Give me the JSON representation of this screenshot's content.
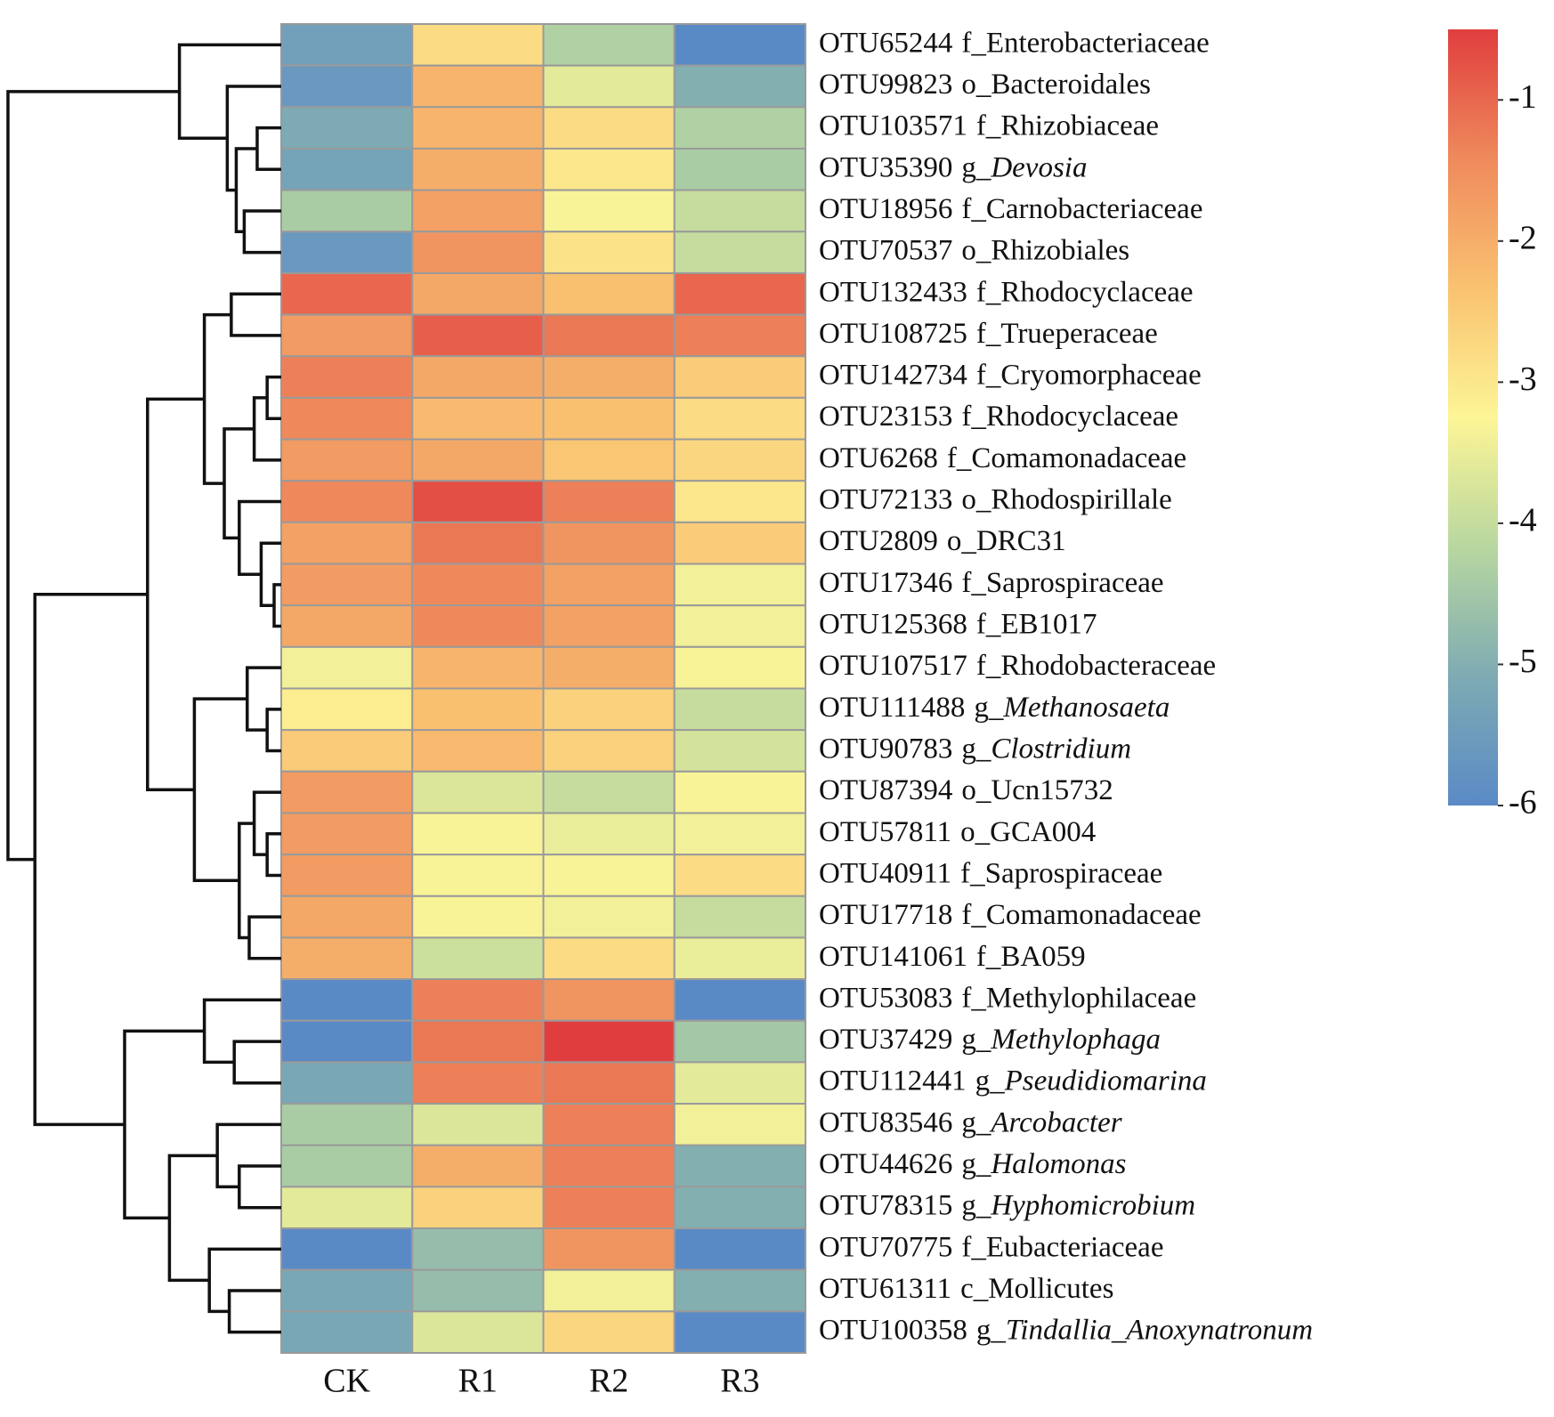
{
  "chart_data": {
    "type": "heatmap",
    "columns": [
      "CK",
      "R1",
      "R2",
      "R3"
    ],
    "rows": [
      {
        "otu": "OTU65244",
        "taxon": "f_Enterobacteriaceae"
      },
      {
        "otu": "OTU99823",
        "taxon": "o_Bacteroidales"
      },
      {
        "otu": "OTU103571",
        "taxon": "f_Rhizobiaceae"
      },
      {
        "otu": "OTU35390",
        "rank": "g_",
        "taxon": "Devosia",
        "italic": true
      },
      {
        "otu": "OTU18956",
        "taxon": "f_Carnobacteriaceae"
      },
      {
        "otu": "OTU70537",
        "taxon": "o_Rhizobiales"
      },
      {
        "otu": "OTU132433",
        "taxon": "f_Rhodocyclaceae"
      },
      {
        "otu": "OTU108725",
        "taxon": "f_Trueperaceae"
      },
      {
        "otu": "OTU142734",
        "taxon": "f_Cryomorphaceae"
      },
      {
        "otu": "OTU23153",
        "taxon": "f_Rhodocyclaceae"
      },
      {
        "otu": "OTU6268",
        "taxon": "f_Comamonadaceae"
      },
      {
        "otu": "OTU72133",
        "taxon": "o_Rhodospirillale"
      },
      {
        "otu": "OTU2809",
        "taxon": "o_DRC31"
      },
      {
        "otu": "OTU17346",
        "taxon": "f_Saprospiraceae"
      },
      {
        "otu": "OTU125368",
        "taxon": "f_EB1017"
      },
      {
        "otu": "OTU107517",
        "taxon": "f_Rhodobacteraceae"
      },
      {
        "otu": "OTU111488",
        "rank": "g_",
        "taxon": "Methanosaeta",
        "italic": true
      },
      {
        "otu": "OTU90783",
        "rank": "g_",
        "taxon": "Clostridium",
        "italic": true
      },
      {
        "otu": "OTU87394",
        "taxon": "o_Ucn15732"
      },
      {
        "otu": "OTU57811",
        "taxon": "o_GCA004"
      },
      {
        "otu": "OTU40911",
        "taxon": "f_Saprospiraceae"
      },
      {
        "otu": "OTU17718",
        "taxon": "f_Comamonadaceae"
      },
      {
        "otu": "OTU141061",
        "taxon": "f_BA059"
      },
      {
        "otu": "OTU53083",
        "taxon": "f_Methylophilaceae"
      },
      {
        "otu": "OTU37429",
        "rank": "g_",
        "taxon": "Methylophaga",
        "italic": true
      },
      {
        "otu": "OTU112441",
        "rank": "g_",
        "taxon": "Pseudidiomarina",
        "italic": true
      },
      {
        "otu": "OTU83546",
        "rank": "g_",
        "taxon": "Arcobacter",
        "italic": true
      },
      {
        "otu": "OTU44626",
        "rank": "g_",
        "taxon": "Halomonas",
        "italic": true
      },
      {
        "otu": "OTU78315",
        "rank": "g_",
        "taxon": "Hyphomicrobium",
        "italic": true
      },
      {
        "otu": "OTU70775",
        "taxon": "f_Eubacteriaceae"
      },
      {
        "otu": "OTU61311",
        "taxon": "c_Mollicutes"
      },
      {
        "otu": "OTU100358",
        "rank": "g_",
        "taxon": "Tindallia_Anoxynatronum",
        "italic": true
      }
    ],
    "values": [
      [
        -5.4,
        -2.8,
        -4.3,
        -6.0
      ],
      [
        -5.6,
        -2.1,
        -3.6,
        -5.0
      ],
      [
        -5.1,
        -2.1,
        -2.8,
        -4.3
      ],
      [
        -5.3,
        -2.0,
        -3.0,
        -4.4
      ],
      [
        -4.4,
        -1.8,
        -3.3,
        -4.0
      ],
      [
        -5.6,
        -1.6,
        -2.9,
        -4.0
      ],
      [
        -1.0,
        -1.9,
        -2.3,
        -1.0
      ],
      [
        -1.7,
        -0.9,
        -1.2,
        -1.3
      ],
      [
        -1.3,
        -1.9,
        -2.0,
        -2.5
      ],
      [
        -1.4,
        -2.2,
        -2.3,
        -2.8
      ],
      [
        -1.7,
        -1.9,
        -2.4,
        -2.7
      ],
      [
        -1.4,
        -0.7,
        -1.3,
        -3.0
      ],
      [
        -1.8,
        -1.2,
        -1.6,
        -2.5
      ],
      [
        -1.7,
        -1.4,
        -1.8,
        -3.4
      ],
      [
        -1.9,
        -1.4,
        -1.8,
        -3.4
      ],
      [
        -3.4,
        -2.1,
        -2.0,
        -3.3
      ],
      [
        -3.1,
        -2.3,
        -2.6,
        -4.0
      ],
      [
        -2.5,
        -2.2,
        -2.6,
        -3.8
      ],
      [
        -1.7,
        -3.7,
        -4.0,
        -3.3
      ],
      [
        -1.7,
        -3.3,
        -3.5,
        -3.4
      ],
      [
        -1.7,
        -3.3,
        -3.3,
        -2.8
      ],
      [
        -1.9,
        -3.3,
        -3.4,
        -4.0
      ],
      [
        -2.0,
        -3.9,
        -2.8,
        -3.5
      ],
      [
        -6.0,
        -1.3,
        -1.6,
        -6.0
      ],
      [
        -6.0,
        -1.2,
        -0.5,
        -4.5
      ],
      [
        -5.2,
        -1.3,
        -1.2,
        -3.6
      ],
      [
        -4.4,
        -3.7,
        -1.3,
        -3.4
      ],
      [
        -4.4,
        -2.0,
        -1.3,
        -5.0
      ],
      [
        -3.6,
        -2.6,
        -1.3,
        -5.0
      ],
      [
        -6.0,
        -4.7,
        -1.6,
        -6.0
      ],
      [
        -5.2,
        -4.7,
        -3.4,
        -5.0
      ],
      [
        -5.2,
        -3.7,
        -2.7,
        -6.0
      ]
    ],
    "zlim": [
      -6,
      -0.5
    ],
    "zticks": [
      -1,
      -2,
      -3,
      -4,
      -5,
      -6
    ],
    "colorscale": [
      "#5a8ac6",
      "#7eabb3",
      "#b8d7a0",
      "#fdf596",
      "#f9c271",
      "#ef8a5c",
      "#e03e3e"
    ]
  }
}
